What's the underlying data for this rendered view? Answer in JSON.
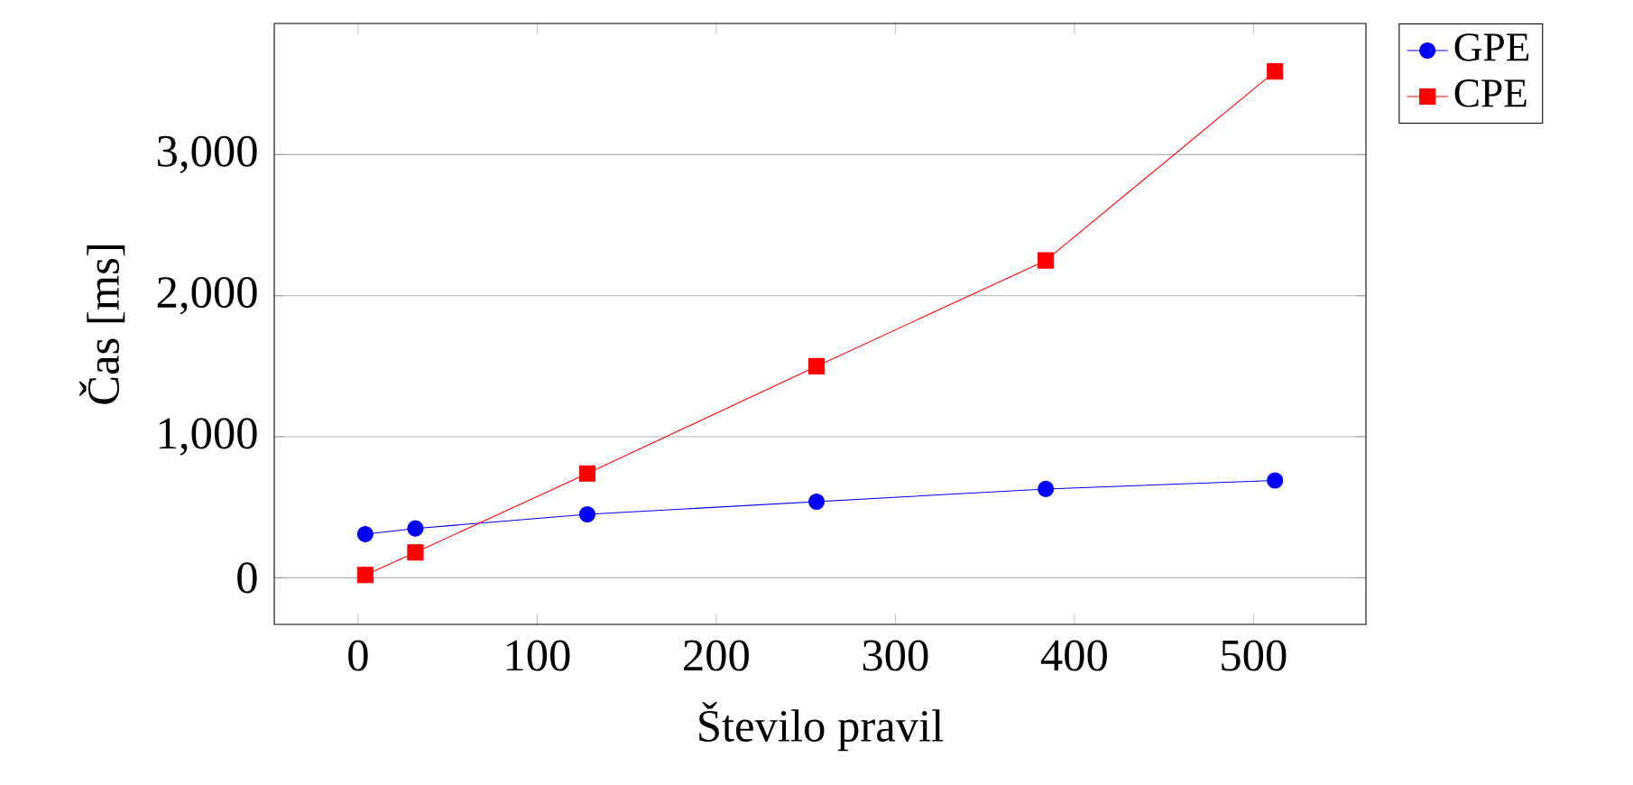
{
  "chart_data": {
    "type": "line",
    "xlabel": "Število pravil",
    "ylabel": "Čas [ms]",
    "x": [
      4,
      32,
      128,
      256,
      384,
      512
    ],
    "series": [
      {
        "name": "GPE",
        "color": "#0000ff",
        "marker": "circle",
        "values": [
          310,
          350,
          450,
          540,
          630,
          690
        ]
      },
      {
        "name": "CPE",
        "color": "#ff0000",
        "marker": "square",
        "values": [
          20,
          180,
          740,
          1500,
          2250,
          3590
        ]
      }
    ],
    "xlim": [
      -46.8,
      562.8
    ],
    "ylim": [
      -330,
      3930
    ],
    "xticks": [
      0,
      100,
      200,
      300,
      400,
      500
    ],
    "yticks": [
      {
        "value": 0,
        "label": "0"
      },
      {
        "value": 1000,
        "label": "1,000"
      },
      {
        "value": 2000,
        "label": "2,000"
      },
      {
        "value": 3000,
        "label": "3,000"
      }
    ],
    "grid": "y",
    "legend": "top right outside"
  }
}
